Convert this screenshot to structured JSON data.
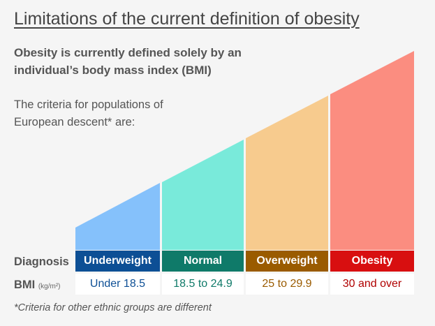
{
  "title": "Limitations of the current definition of obesity",
  "subtitle": "Obesity is currently defined solely by an individual’s body mass index (BMI)",
  "criteria_text": "The criteria for populations of European descent* are:",
  "row_labels": {
    "diagnosis": "Diagnosis",
    "bmi": "BMI",
    "bmi_unit": "(kg/m²)"
  },
  "categories": [
    {
      "diagnosis": "Underweight",
      "bmi": "Under 18.5",
      "fill": "#85c1fb",
      "header": "#0d4f95",
      "text": "#0d4f95"
    },
    {
      "diagnosis": "Normal",
      "bmi": "18.5 to 24.9",
      "fill": "#79eada",
      "header": "#0f7a69",
      "text": "#0f7a69"
    },
    {
      "diagnosis": "Overweight",
      "bmi": "25 to 29.9",
      "fill": "#f7cb8e",
      "header": "#9a5b00",
      "text": "#9a5b00"
    },
    {
      "diagnosis": "Obesity",
      "bmi": "30 and over",
      "fill": "#fb8d80",
      "header": "#d80f10",
      "text": "#b00000"
    }
  ],
  "footnote": "*Criteria for other ethnic groups are different"
}
